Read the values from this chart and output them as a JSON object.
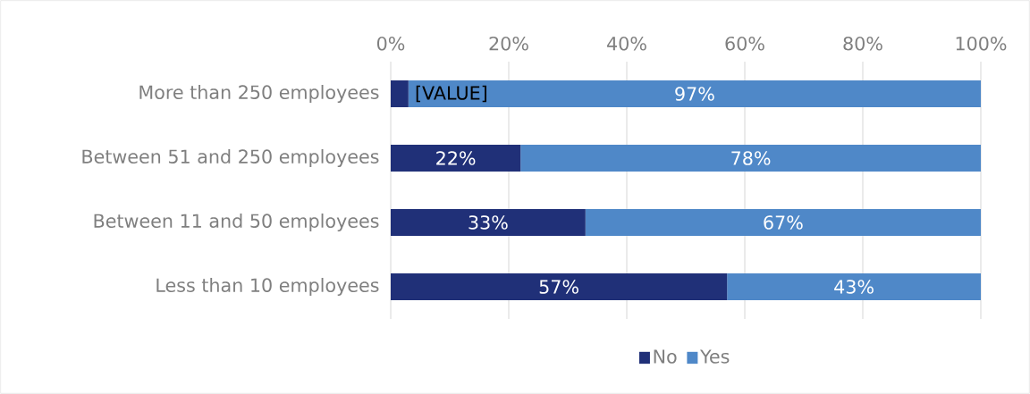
{
  "chart_data": {
    "type": "bar",
    "orientation": "horizontal",
    "stacked": true,
    "categories": [
      "More than 250 employees",
      "Between 51 and 250 employees",
      "Between 11 and 50 employees",
      "Less than 10 employees"
    ],
    "series": [
      {
        "name": "No",
        "color": "#203078",
        "values": [
          3,
          22,
          33,
          57
        ],
        "value_labels": [
          "[VALUE]",
          "22%",
          "33%",
          "57%"
        ]
      },
      {
        "name": "Yes",
        "color": "#4f88c8",
        "values": [
          97,
          78,
          67,
          43
        ],
        "value_labels": [
          "97%",
          "78%",
          "67%",
          "43%"
        ]
      }
    ],
    "xlim": [
      0,
      100
    ],
    "xticks": [
      {
        "value": 0,
        "label": "0%"
      },
      {
        "value": 20,
        "label": "20%"
      },
      {
        "value": 40,
        "label": "40%"
      },
      {
        "value": 60,
        "label": "60%"
      },
      {
        "value": 80,
        "label": "80%"
      },
      {
        "value": 100,
        "label": "100%"
      }
    ],
    "grid": "x",
    "legend": "bottom"
  }
}
